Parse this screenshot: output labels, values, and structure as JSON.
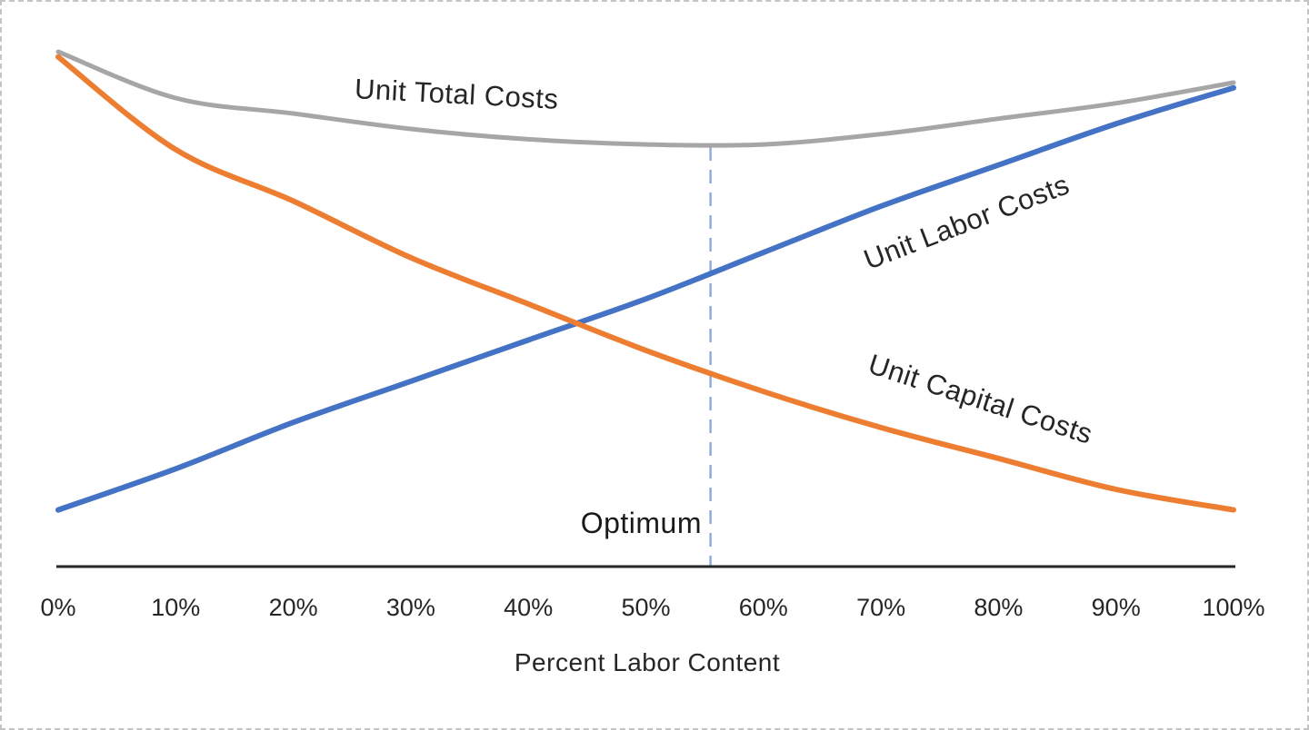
{
  "figure": {
    "background_color": "#ffffff",
    "border_color": "#c4c4c4"
  },
  "labels": {
    "total": "Unit Total Costs",
    "labor": "Unit Labor Costs",
    "capital": "Unit Capital Costs",
    "optimum": "Optimum",
    "x_axis_title": "Percent Labor Content"
  },
  "colors": {
    "total_line": "#a6a6a6",
    "labor_line": "#4472c4",
    "capital_line": "#ed7d31",
    "optimum_dash_line": "#8faadc",
    "axis_line": "#262626",
    "text": "#262626"
  },
  "chart_data": {
    "type": "line",
    "title": "",
    "xlabel": "Percent Labor Content",
    "ylabel": "",
    "x": [
      0,
      10,
      20,
      30,
      40,
      50,
      60,
      70,
      80,
      90,
      100
    ],
    "x_tick_labels": [
      "0%",
      "10%",
      "20%",
      "30%",
      "40%",
      "50%",
      "60%",
      "70%",
      "80%",
      "90%",
      "100%"
    ],
    "xlim": [
      0,
      100
    ],
    "ylim": [
      0,
      105
    ],
    "y_axis_visible": false,
    "grid": false,
    "legend": "inline-curve-labels",
    "series": [
      {
        "name": "Unit Total Costs",
        "color": "#a6a6a6",
        "values": [
          100,
          91,
          88,
          85,
          83,
          82,
          82,
          84,
          87,
          90,
          94
        ]
      },
      {
        "name": "Unit Labor Costs",
        "color": "#4472c4",
        "values": [
          11,
          19,
          28,
          36,
          44,
          52,
          61,
          70,
          78,
          86,
          93
        ]
      },
      {
        "name": "Unit Capital Costs",
        "color": "#ed7d31",
        "values": [
          99,
          81,
          71,
          60,
          51,
          42,
          34,
          27,
          21,
          15,
          11
        ]
      }
    ],
    "annotation": {
      "label": "Optimum",
      "x_percent": 55.5,
      "line_style": "dashed",
      "line_color": "#8faadc",
      "meaning": "labor content with minimum unit total cost"
    }
  }
}
